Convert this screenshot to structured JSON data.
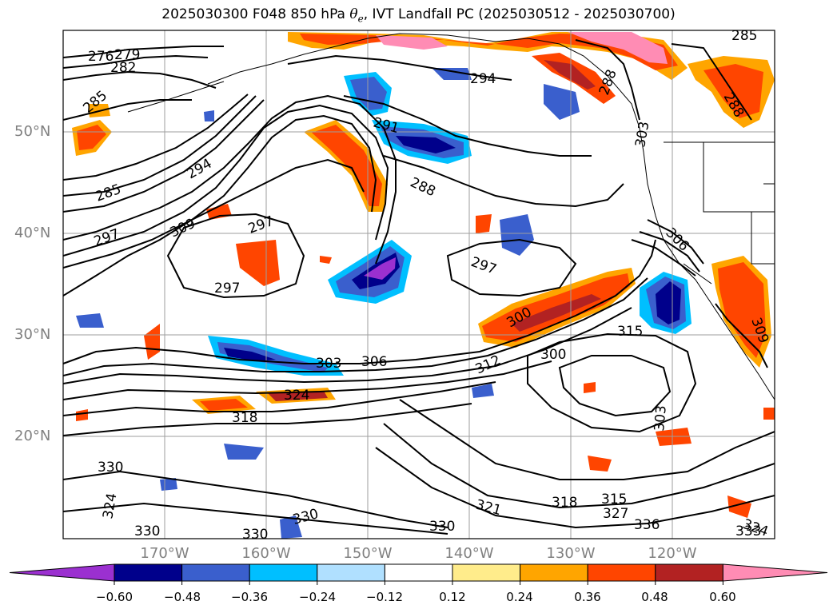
{
  "title": {
    "prefix": "2025030300 F048 850 hPa ",
    "theta": "θ",
    "theta_sub": "e",
    "suffix": ", IVT Landfall PC (2025030512 - 2025030700)"
  },
  "axes": {
    "lat_labels": [
      "50°N",
      "40°N",
      "30°N",
      "20°N"
    ],
    "lon_labels": [
      "170°W",
      "160°W",
      "150°W",
      "140°W",
      "130°W",
      "120°W"
    ]
  },
  "colorbar": {
    "ticks": [
      "−0.60",
      "−0.48",
      "−0.36",
      "−0.24",
      "−0.12",
      "0.12",
      "0.24",
      "0.36",
      "0.48",
      "0.60"
    ],
    "colors": [
      "#9b30d0",
      "#00008b",
      "#3a5fcd",
      "#00bfff",
      "#b0e0ff",
      "#ffffff",
      "#ffec8b",
      "#ffa500",
      "#ff4500",
      "#b22222",
      "#ff8cb4"
    ]
  },
  "contour_labels": [
    {
      "text": "276"
    },
    {
      "text": "279"
    },
    {
      "text": "282"
    },
    {
      "text": "285"
    },
    {
      "text": "294"
    },
    {
      "text": "285"
    },
    {
      "text": "294"
    },
    {
      "text": "291"
    },
    {
      "text": "288"
    },
    {
      "text": "297"
    },
    {
      "text": "309"
    },
    {
      "text": "297"
    },
    {
      "text": "297"
    },
    {
      "text": "297"
    },
    {
      "text": "288"
    },
    {
      "text": "288"
    },
    {
      "text": "306"
    },
    {
      "text": "303"
    },
    {
      "text": "306"
    },
    {
      "text": "300"
    },
    {
      "text": "300"
    },
    {
      "text": "312"
    },
    {
      "text": "315"
    },
    {
      "text": "318"
    },
    {
      "text": "324"
    },
    {
      "text": "303"
    },
    {
      "text": "330"
    },
    {
      "text": "324"
    },
    {
      "text": "321"
    },
    {
      "text": "318"
    },
    {
      "text": "315"
    },
    {
      "text": "327"
    },
    {
      "text": "336"
    },
    {
      "text": "330"
    },
    {
      "text": "330"
    },
    {
      "text": "330"
    },
    {
      "text": "330"
    },
    {
      "text": "324"
    },
    {
      "text": "333"
    },
    {
      "text": "303"
    },
    {
      "text": "309"
    },
    {
      "text": "285"
    }
  ]
}
